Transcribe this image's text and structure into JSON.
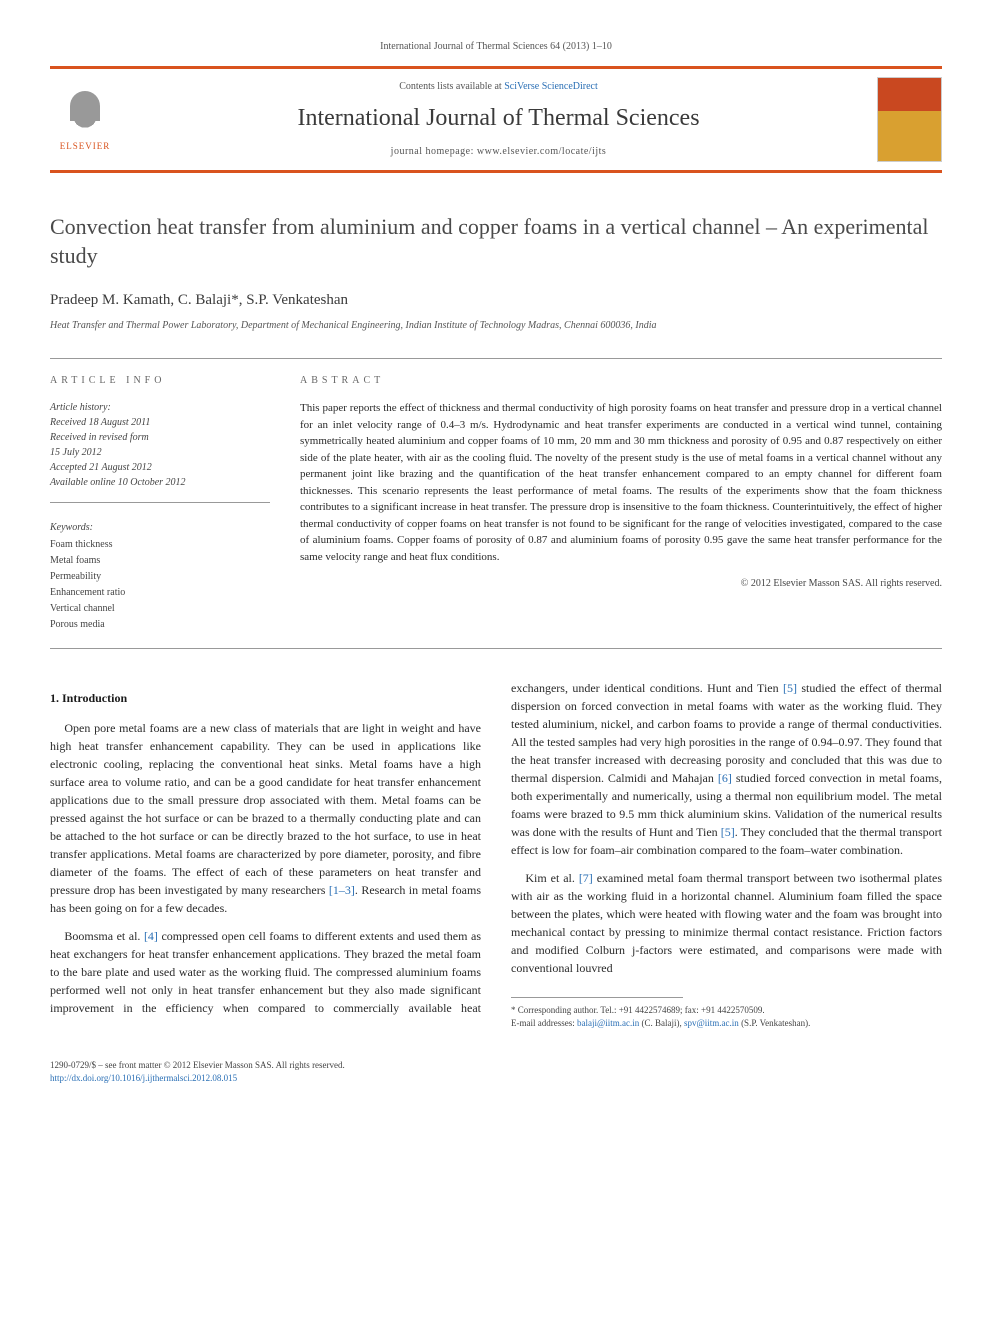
{
  "journal_ref": "International Journal of Thermal Sciences 64 (2013) 1–10",
  "header": {
    "contents_prefix": "Contents lists available at ",
    "contents_link": "SciVerse ScienceDirect",
    "journal_name": "International Journal of Thermal Sciences",
    "homepage_prefix": "journal homepage: ",
    "homepage_url": "www.elsevier.com/locate/ijts",
    "publisher": "ELSEVIER"
  },
  "title": "Convection heat transfer from aluminium and copper foams in a vertical channel – An experimental study",
  "authors": "Pradeep M. Kamath, C. Balaji*, S.P. Venkateshan",
  "affiliation": "Heat Transfer and Thermal Power Laboratory, Department of Mechanical Engineering, Indian Institute of Technology Madras, Chennai 600036, India",
  "info": {
    "section_label": "ARTICLE INFO",
    "history_label": "Article history:",
    "received": "Received 18 August 2011",
    "revised": "Received in revised form",
    "revised_date": "15 July 2012",
    "accepted": "Accepted 21 August 2012",
    "online": "Available online 10 October 2012",
    "keywords_label": "Keywords:",
    "keywords": [
      "Foam thickness",
      "Metal foams",
      "Permeability",
      "Enhancement ratio",
      "Vertical channel",
      "Porous media"
    ]
  },
  "abstract": {
    "section_label": "ABSTRACT",
    "text": "This paper reports the effect of thickness and thermal conductivity of high porosity foams on heat transfer and pressure drop in a vertical channel for an inlet velocity range of 0.4–3 m/s. Hydrodynamic and heat transfer experiments are conducted in a vertical wind tunnel, containing symmetrically heated aluminium and copper foams of 10 mm, 20 mm and 30 mm thickness and porosity of 0.95 and 0.87 respectively on either side of the plate heater, with air as the cooling fluid. The novelty of the present study is the use of metal foams in a vertical channel without any permanent joint like brazing and the quantification of the heat transfer enhancement compared to an empty channel for different foam thicknesses. This scenario represents the least performance of metal foams. The results of the experiments show that the foam thickness contributes to a significant increase in heat transfer. The pressure drop is insensitive to the foam thickness. Counterintuitively, the effect of higher thermal conductivity of copper foams on heat transfer is not found to be significant for the range of velocities investigated, compared to the case of aluminium foams. Copper foams of porosity of 0.87 and aluminium foams of porosity 0.95 gave the same heat transfer performance for the same velocity range and heat flux conditions.",
    "copyright": "© 2012 Elsevier Masson SAS. All rights reserved."
  },
  "body": {
    "heading1": "1. Introduction",
    "p1": "Open pore metal foams are a new class of materials that are light in weight and have high heat transfer enhancement capability. They can be used in applications like electronic cooling, replacing the conventional heat sinks. Metal foams have a high surface area to volume ratio, and can be a good candidate for heat transfer enhancement applications due to the small pressure drop associated with them. Metal foams can be pressed against the hot surface or can be brazed to a thermally conducting plate and can be attached to the hot surface or can be directly brazed to the hot surface, to use in heat transfer applications. Metal foams are characterized by pore diameter, porosity, and fibre diameter of the foams. The effect of each of these parameters on heat transfer and pressure drop has been investigated by many researchers ",
    "p1_ref": "[1–3]",
    "p1_tail": ". Research in metal foams has been going on for a few decades.",
    "p2a": "Boomsma et al. ",
    "p2_ref": "[4]",
    "p2b": " compressed open cell foams to different extents and used them as heat exchangers for heat transfer enhancement applications. They brazed the metal foam to the bare plate and used water as the working fluid. The compressed aluminium foams performed well not only in heat transfer enhancement but they also made significant improvement in the efficiency when compared to commercially available heat exchangers, under identical conditions. Hunt and Tien ",
    "p2_ref2": "[5]",
    "p2c": " studied the effect of thermal dispersion on forced convection in metal foams with water as the working fluid. They tested aluminium, nickel, and carbon foams to provide a range of thermal conductivities. All the tested samples had very high porosities in the range of 0.94–0.97. They found that the heat transfer increased with decreasing porosity and concluded that this was due to thermal dispersion. Calmidi and Mahajan ",
    "p2_ref3": "[6]",
    "p2d": " studied forced convection in metal foams, both experimentally and numerically, using a thermal non equilibrium model. The metal foams were brazed to 9.5 mm thick aluminium skins. Validation of the numerical results was done with the results of Hunt and Tien ",
    "p2_ref4": "[5]",
    "p2e": ". They concluded that the thermal transport effect is low for foam–air combination compared to the foam–water combination.",
    "p3a": "Kim et al. ",
    "p3_ref": "[7]",
    "p3b": " examined metal foam thermal transport between two isothermal plates with air as the working fluid in a horizontal channel. Aluminium foam filled the space between the plates, which were heated with flowing water and the foam was brought into mechanical contact by pressing to minimize thermal contact resistance. Friction factors and modified Colburn j-factors were estimated, and comparisons were made with conventional louvred"
  },
  "footnote": {
    "corresponding": "* Corresponding author. Tel.: +91 4422574689; fax: +91 4422570509.",
    "email_label": "E-mail addresses: ",
    "email1": "balaji@iitm.ac.in",
    "email1_name": " (C. Balaji), ",
    "email2": "spv@iitm.ac.in",
    "email2_name": " (S.P. Venkateshan)."
  },
  "footer": {
    "issn": "1290-0729/$ – see front matter © 2012 Elsevier Masson SAS. All rights reserved.",
    "doi": "http://dx.doi.org/10.1016/j.ijthermalsci.2012.08.015"
  },
  "colors": {
    "accent": "#d9531e",
    "link": "#2a6fb5",
    "text": "#2a2a2a"
  }
}
